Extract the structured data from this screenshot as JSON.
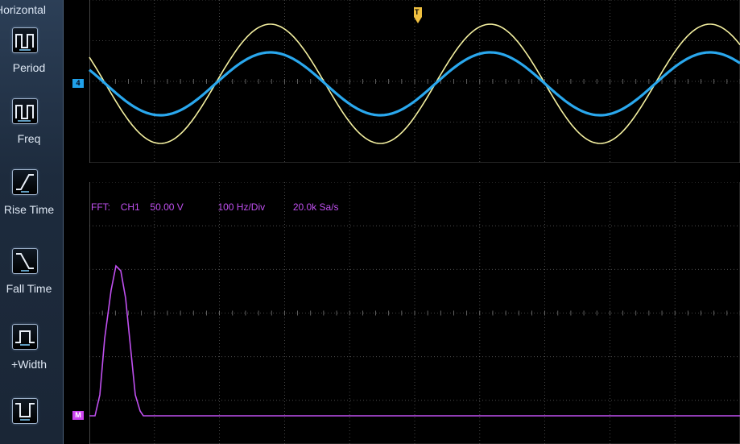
{
  "sidebar": {
    "title": "Horizontal",
    "buttons": [
      {
        "label": "Period",
        "icon": "period-icon"
      },
      {
        "label": "Freq",
        "icon": "freq-icon"
      },
      {
        "label": "Rise Time",
        "icon": "rise-time-icon"
      },
      {
        "label": "Fall Time",
        "icon": "fall-time-icon"
      },
      {
        "label": "+Width",
        "icon": "pos-width-icon"
      },
      {
        "label": "",
        "icon": "neg-width-icon"
      }
    ]
  },
  "markers": {
    "ch4": "4",
    "math": "M",
    "trigger": "T"
  },
  "fft": {
    "label": "FFT:",
    "source": "CH1",
    "scale": "50.00 V",
    "hdiv": "100 Hz/Div",
    "rate": "20.0k Sa/s"
  },
  "colors": {
    "ch1": "#f4f0a0",
    "ch4": "#2aa8ee",
    "math": "#c050f0",
    "grid": "#5a5a5a"
  }
}
